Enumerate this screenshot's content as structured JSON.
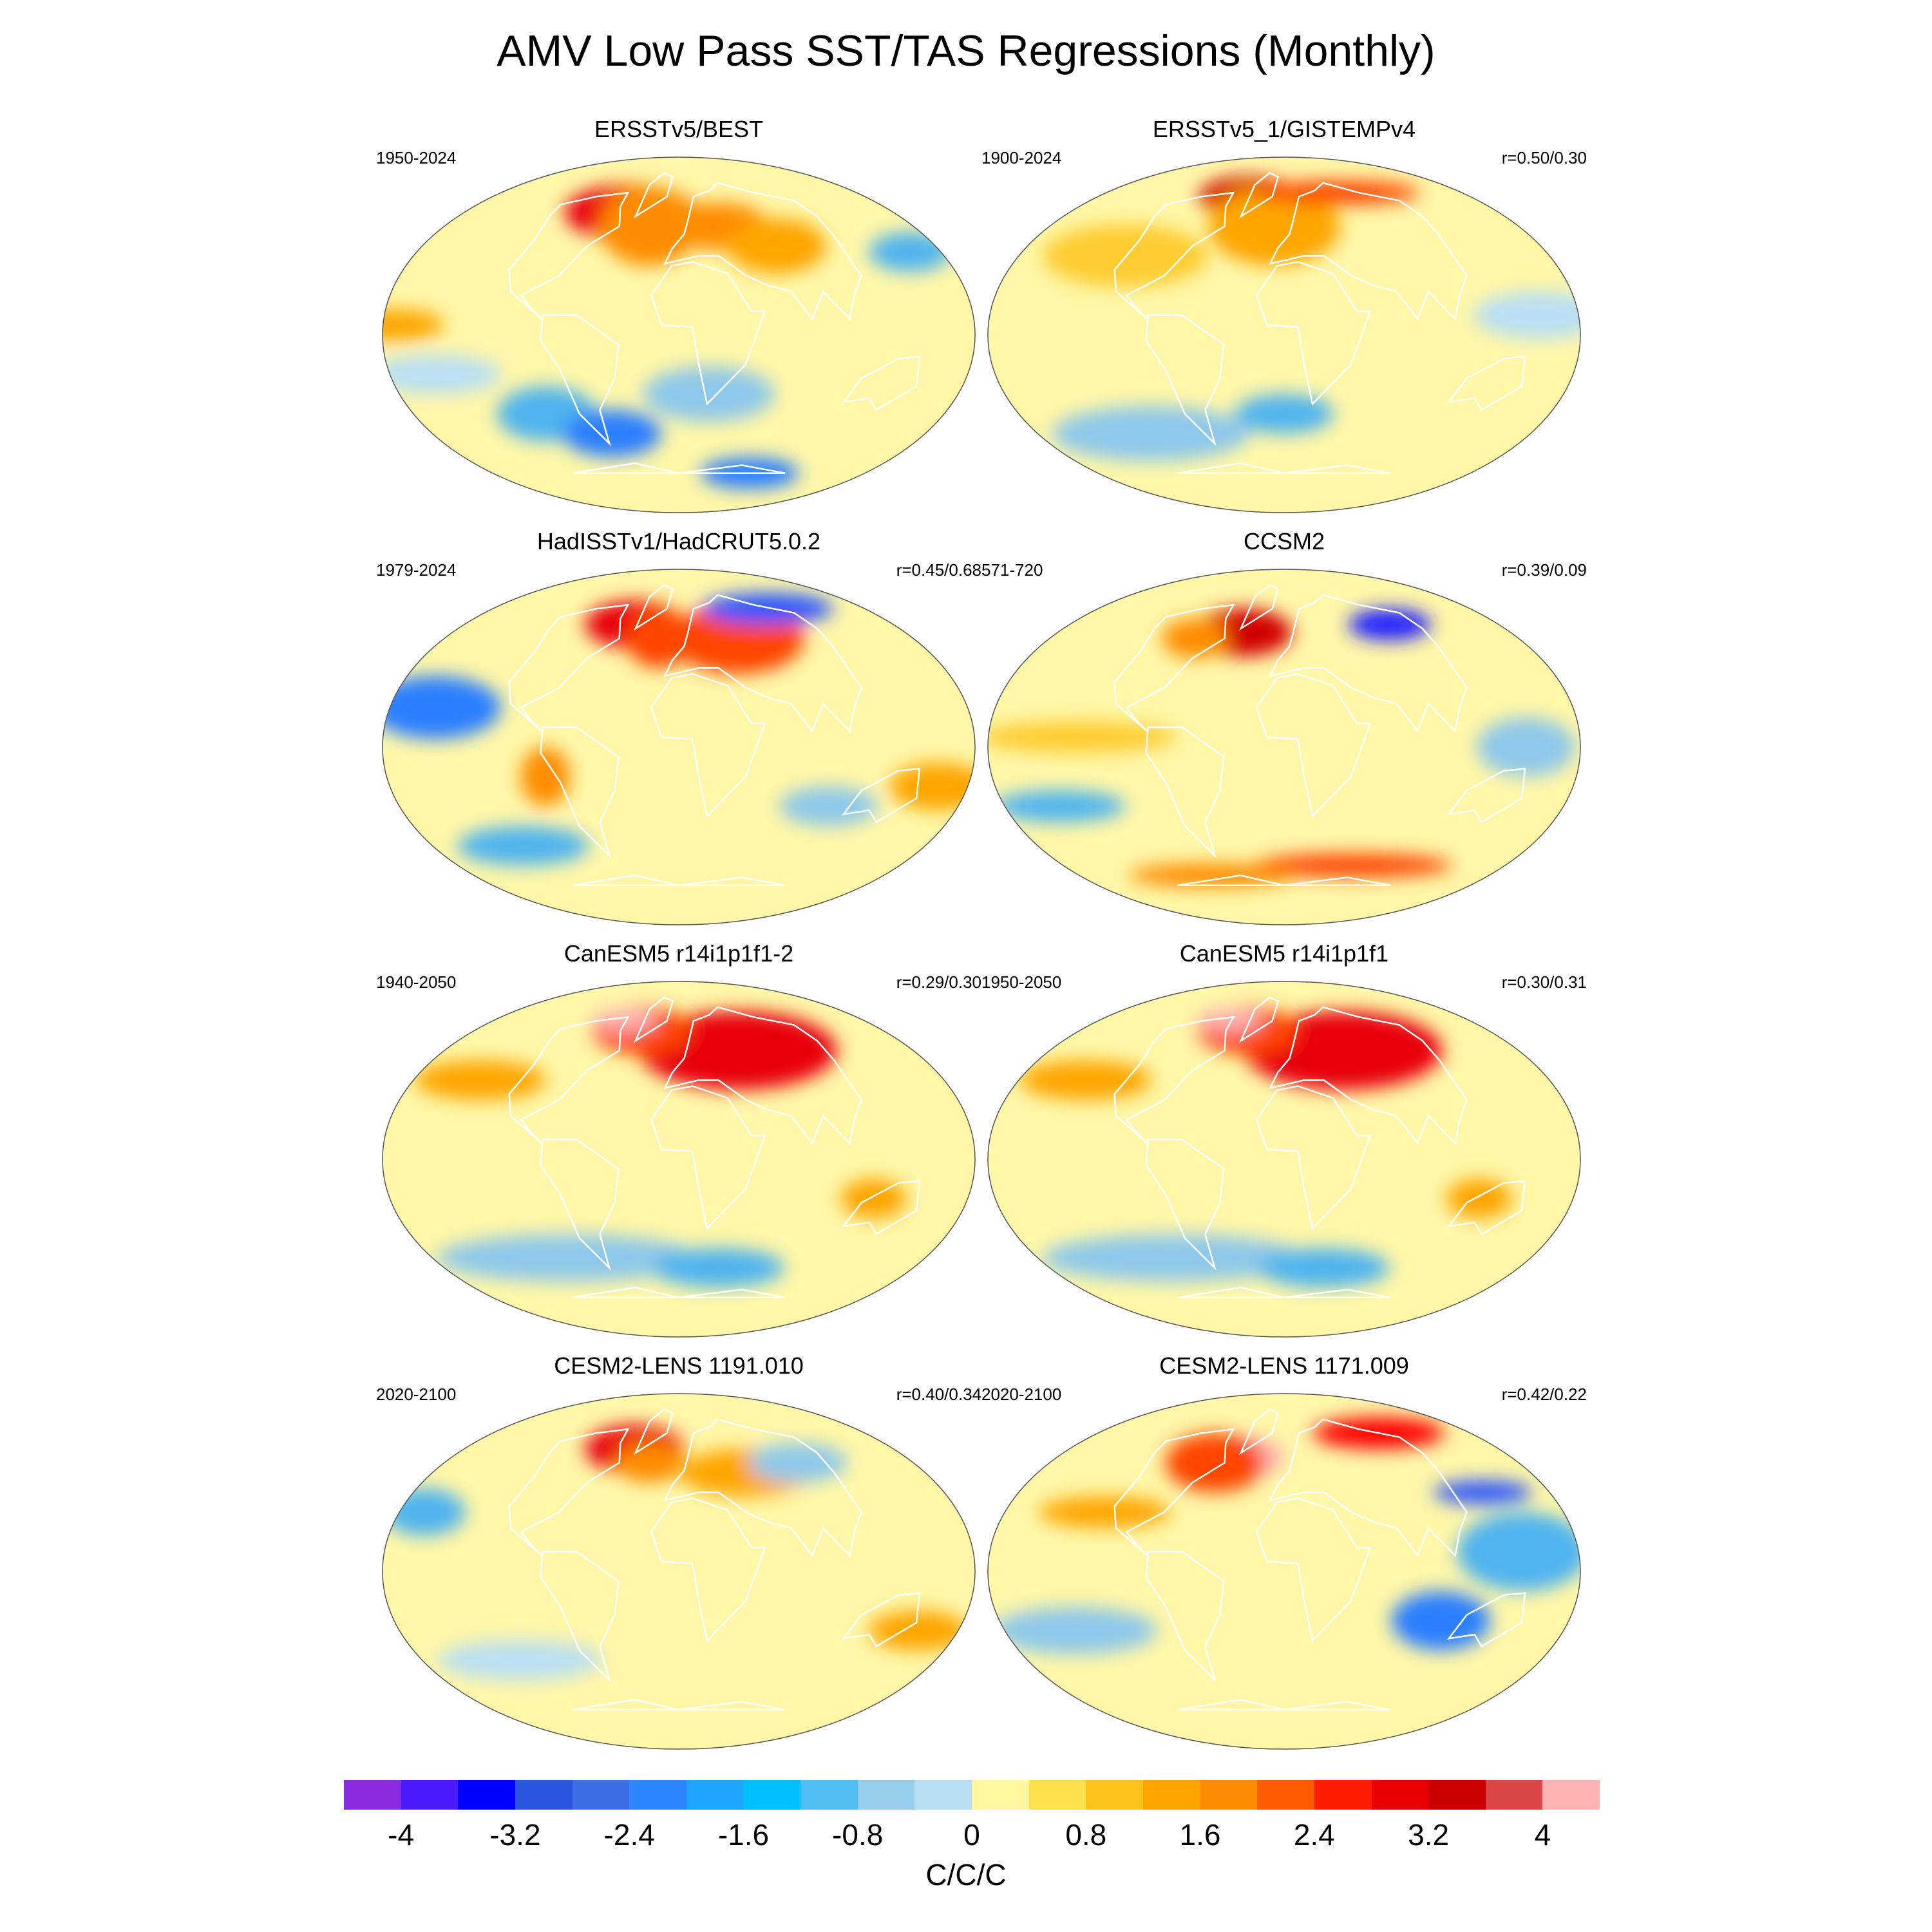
{
  "title": "AMV Low Pass SST/TAS Regressions (Monthly)",
  "panels": [
    {
      "title": "ERSSTv5/BEST",
      "years": "1950-2024",
      "r": "",
      "blobs": [
        {
          "lon": -60,
          "lat": 62,
          "rx": 40,
          "ry": 14,
          "c": "#e8000b"
        },
        {
          "lon": -30,
          "lat": 55,
          "rx": 30,
          "ry": 20,
          "c": "#ff8c00"
        },
        {
          "lon": 40,
          "lat": 55,
          "rx": 30,
          "ry": 12,
          "c": "#ff8c00"
        },
        {
          "lon": 80,
          "lat": 45,
          "rx": 30,
          "ry": 14,
          "c": "#ffa500"
        },
        {
          "lon": 180,
          "lat": 42,
          "rx": 25,
          "ry": 10,
          "c": "#50b4ef"
        },
        {
          "lon": -165,
          "lat": 5,
          "rx": 30,
          "ry": 8,
          "c": "#ffa500"
        },
        {
          "lon": -100,
          "lat": -40,
          "rx": 30,
          "ry": 14,
          "c": "#50b4ef"
        },
        {
          "lon": -60,
          "lat": -50,
          "rx": 30,
          "ry": 12,
          "c": "#2c7fff"
        },
        {
          "lon": 20,
          "lat": -30,
          "rx": 40,
          "ry": 14,
          "c": "#8ec8ea"
        },
        {
          "lon": 120,
          "lat": -70,
          "rx": 30,
          "ry": 8,
          "c": "#2c7fff"
        },
        {
          "lon": -150,
          "lat": -20,
          "rx": 40,
          "ry": 10,
          "c": "#b9dff3"
        }
      ]
    },
    {
      "title": "ERSSTv5_1/GISTEMPv4",
      "years": "1900-2024",
      "r": "r=0.50/0.30",
      "blobs": [
        {
          "lon": -60,
          "lat": 70,
          "rx": 30,
          "ry": 10,
          "c": "#d10000"
        },
        {
          "lon": -10,
          "lat": 55,
          "rx": 40,
          "ry": 20,
          "c": "#ffa500"
        },
        {
          "lon": 100,
          "lat": 72,
          "rx": 50,
          "ry": 6,
          "c": "#ff4500"
        },
        {
          "lon": -120,
          "lat": 40,
          "rx": 50,
          "ry": 16,
          "c": "#ffcc33"
        },
        {
          "lon": 150,
          "lat": 10,
          "rx": 40,
          "ry": 12,
          "c": "#b9dff3"
        },
        {
          "lon": -120,
          "lat": -50,
          "rx": 60,
          "ry": 14,
          "c": "#8ec8ea"
        },
        {
          "lon": 0,
          "lat": -40,
          "rx": 30,
          "ry": 10,
          "c": "#50b4ef"
        }
      ]
    },
    {
      "title": "HadISSTv1/HadCRUT5.0.2",
      "years": "1979-2024",
      "r": "r=0.45/0.68",
      "blobs": [
        {
          "lon": -55,
          "lat": 62,
          "rx": 30,
          "ry": 12,
          "c": "#e8000b"
        },
        {
          "lon": -20,
          "lat": 55,
          "rx": 20,
          "ry": 15,
          "c": "#ff4500"
        },
        {
          "lon": 60,
          "lat": 55,
          "rx": 40,
          "ry": 18,
          "c": "#ff4500"
        },
        {
          "lon": 150,
          "lat": 70,
          "rx": 40,
          "ry": 8,
          "c": "#2c56ff"
        },
        {
          "lon": -150,
          "lat": 20,
          "rx": 40,
          "ry": 16,
          "c": "#2c7fff"
        },
        {
          "lon": -80,
          "lat": -15,
          "rx": 15,
          "ry": 15,
          "c": "#ff8c00"
        },
        {
          "lon": 160,
          "lat": -20,
          "rx": 30,
          "ry": 12,
          "c": "#ffa500"
        },
        {
          "lon": -140,
          "lat": -50,
          "rx": 40,
          "ry": 10,
          "c": "#50b4ef"
        },
        {
          "lon": 100,
          "lat": -30,
          "rx": 30,
          "ry": 10,
          "c": "#8ec8ea"
        }
      ]
    },
    {
      "title": "CCSM2",
      "years": "571-720",
      "r": "r=0.39/0.09",
      "blobs": [
        {
          "lon": -45,
          "lat": 58,
          "rx": 30,
          "ry": 12,
          "c": "#d10000"
        },
        {
          "lon": -90,
          "lat": 55,
          "rx": 20,
          "ry": 10,
          "c": "#ff8c00"
        },
        {
          "lon": 130,
          "lat": 62,
          "rx": 25,
          "ry": 8,
          "c": "#2020ff"
        },
        {
          "lon": -120,
          "lat": 5,
          "rx": 60,
          "ry": 8,
          "c": "#ffcc33"
        },
        {
          "lon": 140,
          "lat": 0,
          "rx": 30,
          "ry": 15,
          "c": "#8ec8ea"
        },
        {
          "lon": -150,
          "lat": -30,
          "rx": 40,
          "ry": 8,
          "c": "#50b4ef"
        },
        {
          "lon": 80,
          "lat": -60,
          "rx": 60,
          "ry": 6,
          "c": "#ff4500"
        },
        {
          "lon": -100,
          "lat": -65,
          "rx": 50,
          "ry": 6,
          "c": "#ff8c00"
        }
      ]
    },
    {
      "title": "CanESM5 r14i1p1f1-2",
      "years": "1940-2050",
      "r": "r=0.29/0.30",
      "blobs": [
        {
          "lon": 60,
          "lat": 55,
          "rx": 60,
          "ry": 20,
          "c": "#e8000b"
        },
        {
          "lon": -50,
          "lat": 65,
          "rx": 30,
          "ry": 12,
          "c": "#ff4500"
        },
        {
          "lon": -90,
          "lat": 70,
          "rx": 20,
          "ry": 6,
          "c": "#ffb0b0"
        },
        {
          "lon": -150,
          "lat": 40,
          "rx": 40,
          "ry": 10,
          "c": "#ffa500"
        },
        {
          "lon": 120,
          "lat": -20,
          "rx": 20,
          "ry": 10,
          "c": "#ffa500"
        },
        {
          "lon": -100,
          "lat": -50,
          "rx": 80,
          "ry": 12,
          "c": "#8ec8ea"
        },
        {
          "lon": 40,
          "lat": -55,
          "rx": 40,
          "ry": 10,
          "c": "#50b4ef"
        }
      ]
    },
    {
      "title": "CanESM5 r14i1p1f1",
      "years": "1950-2050",
      "r": "r=0.30/0.31",
      "blobs": [
        {
          "lon": 60,
          "lat": 55,
          "rx": 60,
          "ry": 20,
          "c": "#e8000b"
        },
        {
          "lon": -50,
          "lat": 65,
          "rx": 30,
          "ry": 12,
          "c": "#ff4500"
        },
        {
          "lon": -90,
          "lat": 70,
          "rx": 20,
          "ry": 6,
          "c": "#ffb0b0"
        },
        {
          "lon": -150,
          "lat": 40,
          "rx": 40,
          "ry": 10,
          "c": "#ffa500"
        },
        {
          "lon": 120,
          "lat": -20,
          "rx": 20,
          "ry": 10,
          "c": "#ffa500"
        },
        {
          "lon": -100,
          "lat": -50,
          "rx": 80,
          "ry": 12,
          "c": "#8ec8ea"
        },
        {
          "lon": 40,
          "lat": -55,
          "rx": 40,
          "ry": 10,
          "c": "#50b4ef"
        }
      ]
    },
    {
      "title": "CESM2-LENS 1191.010",
      "years": "2020-2100",
      "r": "r=0.40/0.34",
      "blobs": [
        {
          "lon": -55,
          "lat": 62,
          "rx": 30,
          "ry": 12,
          "c": "#e8000b"
        },
        {
          "lon": -30,
          "lat": 55,
          "rx": 20,
          "ry": 10,
          "c": "#ff8c00"
        },
        {
          "lon": 60,
          "lat": 50,
          "rx": 40,
          "ry": 12,
          "c": "#ffa500"
        },
        {
          "lon": -170,
          "lat": 30,
          "rx": 25,
          "ry": 12,
          "c": "#50b4ef"
        },
        {
          "lon": 120,
          "lat": 55,
          "rx": 30,
          "ry": 10,
          "c": "#8ec8ea"
        },
        {
          "lon": 160,
          "lat": -30,
          "rx": 30,
          "ry": 10,
          "c": "#ffa500"
        },
        {
          "lon": -130,
          "lat": -45,
          "rx": 50,
          "ry": 10,
          "c": "#b9dff3"
        }
      ]
    },
    {
      "title": "CESM2-LENS 1171.009",
      "years": "2020-2100",
      "r": "r=0.42/0.22",
      "blobs": [
        {
          "lon": -45,
          "lat": 58,
          "rx": 25,
          "ry": 10,
          "c": "#ffb0b0"
        },
        {
          "lon": -70,
          "lat": 55,
          "rx": 30,
          "ry": 15,
          "c": "#ff4500"
        },
        {
          "lon": 160,
          "lat": 70,
          "rx": 40,
          "ry": 8,
          "c": "#ff0000"
        },
        {
          "lon": 150,
          "lat": 40,
          "rx": 30,
          "ry": 6,
          "c": "#2c56ff"
        },
        {
          "lon": 100,
          "lat": -25,
          "rx": 30,
          "ry": 15,
          "c": "#2c7fff"
        },
        {
          "lon": 140,
          "lat": 10,
          "rx": 40,
          "ry": 20,
          "c": "#50b4ef"
        },
        {
          "lon": -140,
          "lat": -30,
          "rx": 50,
          "ry": 12,
          "c": "#8ec8ea"
        },
        {
          "lon": -120,
          "lat": 30,
          "rx": 40,
          "ry": 8,
          "c": "#ffa500"
        }
      ]
    }
  ],
  "colorbar": {
    "colors": [
      "#8a2be2",
      "#4b1aff",
      "#0000ff",
      "#2c56e0",
      "#3c6ee6",
      "#2c86ff",
      "#1ea6ff",
      "#00bfff",
      "#50c0f0",
      "#96cdeb",
      "#b9dff3",
      "#fff8a0",
      "#ffe14d",
      "#ffc31e",
      "#ffa500",
      "#ff8c00",
      "#ff5a00",
      "#ff1e00",
      "#e60000",
      "#c80000",
      "#dc4646",
      "#ffb4b4"
    ],
    "tick_labels": [
      "-4",
      "-3.2",
      "-2.4",
      "-1.6",
      "-0.8",
      "0",
      "0.8",
      "1.6",
      "2.4",
      "3.2",
      "4"
    ],
    "tick_values": [
      -4,
      -3.2,
      -2.4,
      -1.6,
      -0.8,
      0,
      0.8,
      1.6,
      2.4,
      3.2,
      4
    ],
    "range": [
      -4.4,
      4.4
    ],
    "units": "C/C/C"
  }
}
